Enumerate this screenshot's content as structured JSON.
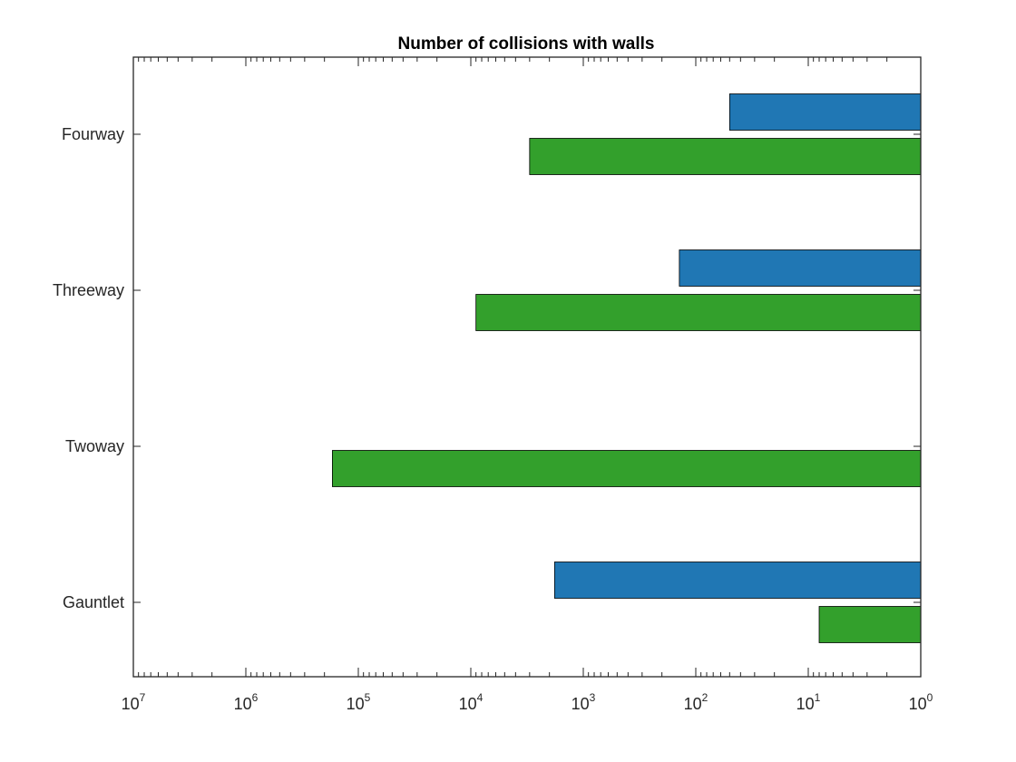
{
  "chart_data": {
    "type": "bar",
    "orientation": "horizontal",
    "title": "Number of collisions with walls",
    "xlabel": "",
    "ylabel": "",
    "xscale": "log",
    "xdir": "reverse",
    "xlim": [
      1,
      10000000
    ],
    "xticks": [
      {
        "base": "10",
        "exp": "7",
        "value": 10000000
      },
      {
        "base": "10",
        "exp": "6",
        "value": 1000000
      },
      {
        "base": "10",
        "exp": "5",
        "value": 100000
      },
      {
        "base": "10",
        "exp": "4",
        "value": 10000
      },
      {
        "base": "10",
        "exp": "3",
        "value": 1000
      },
      {
        "base": "10",
        "exp": "2",
        "value": 100
      },
      {
        "base": "10",
        "exp": "1",
        "value": 10
      },
      {
        "base": "10",
        "exp": "0",
        "value": 1
      }
    ],
    "categories": [
      "Gauntlet",
      "Twoway",
      "Threeway",
      "Fourway"
    ],
    "series": [
      {
        "color": "#2077b4",
        "values": [
          1800,
          1,
          140,
          50
        ]
      },
      {
        "color": "#33a02c",
        "values": [
          8,
          170000,
          9000,
          3000
        ]
      }
    ],
    "grid": false,
    "legend": "none"
  }
}
